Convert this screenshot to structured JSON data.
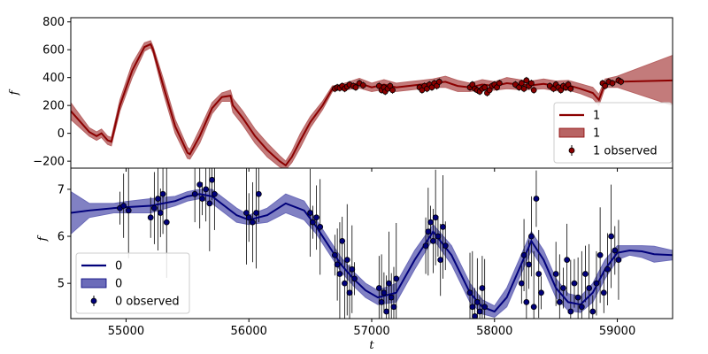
{
  "chart_data": [
    {
      "type": "line",
      "panel": "top",
      "xlabel": "",
      "ylabel": "f",
      "xlim": [
        54550,
        59450
      ],
      "ylim": [
        -250,
        830
      ],
      "yticks": [
        -200,
        0,
        200,
        400,
        600,
        800
      ],
      "colors": {
        "line": "#8b0000",
        "band": "#b86464",
        "point": "#8b0000"
      },
      "legend": {
        "placement": "lower-right",
        "entries": [
          "1",
          "1",
          "1 observed"
        ]
      },
      "series": [
        {
          "name": "1",
          "kind": "mean",
          "x": [
            54550,
            54650,
            54700,
            54760,
            54800,
            54850,
            54880,
            54950,
            55050,
            55150,
            55200,
            55220,
            55300,
            55400,
            55500,
            55520,
            55600,
            55700,
            55780,
            55850,
            55870,
            55950,
            56050,
            56150,
            56250,
            56300,
            56350,
            56420,
            56500,
            56600,
            56680,
            56720,
            56800,
            56900,
            57000,
            57100,
            57200,
            57300,
            57400,
            57500,
            57600,
            57700,
            57800,
            57900,
            58000,
            58100,
            58200,
            58300,
            58400,
            58500,
            58600,
            58700,
            58800,
            58850,
            58900,
            59000,
            59450
          ],
          "values": [
            160,
            60,
            10,
            -20,
            0,
            -50,
            -60,
            200,
            450,
            620,
            640,
            600,
            350,
            50,
            -140,
            -150,
            -20,
            180,
            260,
            270,
            200,
            110,
            -20,
            -120,
            -200,
            -230,
            -170,
            -50,
            80,
            200,
            320,
            330,
            340,
            360,
            330,
            350,
            330,
            340,
            350,
            360,
            370,
            340,
            330,
            350,
            340,
            360,
            350,
            345,
            355,
            340,
            345,
            320,
            290,
            240,
            360,
            370,
            380
          ]
        },
        {
          "name": "1",
          "kind": "band",
          "x": [
            54550,
            54650,
            54700,
            54760,
            54800,
            54850,
            54880,
            54950,
            55050,
            55150,
            55200,
            55220,
            55300,
            55400,
            55500,
            55520,
            55600,
            55700,
            55780,
            55850,
            55870,
            55950,
            56050,
            56150,
            56250,
            56300,
            56350,
            56420,
            56500,
            56600,
            56680,
            56720,
            56800,
            56900,
            57000,
            57100,
            57200,
            57300,
            57400,
            57500,
            57600,
            57700,
            57800,
            57900,
            58000,
            58100,
            58200,
            58300,
            58400,
            58500,
            58600,
            58700,
            58800,
            58850,
            58900,
            59000,
            59450
          ],
          "lower": [
            100,
            20,
            -20,
            -50,
            -30,
            -80,
            -90,
            160,
            400,
            590,
            615,
            575,
            300,
            0,
            -180,
            -185,
            -70,
            140,
            230,
            230,
            150,
            60,
            -70,
            -170,
            -240,
            -260,
            -210,
            -100,
            40,
            170,
            300,
            315,
            315,
            325,
            300,
            315,
            300,
            310,
            320,
            330,
            330,
            300,
            300,
            315,
            310,
            320,
            315,
            315,
            320,
            305,
            310,
            285,
            250,
            200,
            330,
            330,
            200
          ],
          "upper": [
            220,
            100,
            40,
            10,
            30,
            -20,
            -30,
            240,
            500,
            650,
            665,
            625,
            400,
            100,
            -100,
            -115,
            30,
            220,
            290,
            310,
            250,
            160,
            30,
            -70,
            -160,
            -200,
            -130,
            0,
            120,
            230,
            340,
            345,
            365,
            395,
            360,
            385,
            360,
            370,
            380,
            390,
            410,
            380,
            360,
            385,
            370,
            400,
            385,
            375,
            390,
            375,
            380,
            355,
            330,
            280,
            390,
            410,
            560
          ]
        }
      ],
      "observed": {
        "name": "1 observed",
        "x": [
          56700,
          56720,
          56740,
          56760,
          56780,
          56800,
          56820,
          56850,
          56870,
          56900,
          56930,
          57060,
          57080,
          57100,
          57110,
          57130,
          57150,
          57170,
          57390,
          57410,
          57430,
          57450,
          57470,
          57490,
          57510,
          57530,
          57550,
          57800,
          57820,
          57840,
          57860,
          57880,
          57900,
          57920,
          57940,
          57960,
          57980,
          58000,
          58020,
          58040,
          58170,
          58200,
          58220,
          58240,
          58260,
          58280,
          58300,
          58320,
          58450,
          58480,
          58500,
          58520,
          58540,
          58560,
          58580,
          58600,
          58620,
          58880,
          58900,
          58930,
          58960,
          59010,
          59030
        ],
        "values": [
          320,
          330,
          325,
          340,
          320,
          335,
          350,
          340,
          330,
          360,
          345,
          340,
          310,
          330,
          300,
          320,
          340,
          310,
          330,
          310,
          340,
          320,
          350,
          330,
          360,
          340,
          370,
          330,
          350,
          320,
          310,
          300,
          320,
          330,
          290,
          310,
          340,
          350,
          330,
          360,
          350,
          330,
          360,
          320,
          380,
          340,
          360,
          310,
          340,
          320,
          350,
          330,
          310,
          340,
          330,
          350,
          320,
          360,
          340,
          370,
          360,
          380,
          370
        ]
      }
    },
    {
      "type": "line",
      "panel": "bottom",
      "xlabel": "t",
      "ylabel": "f",
      "xlim": [
        54550,
        59450
      ],
      "ylim": [
        4.25,
        7.45
      ],
      "yticks": [
        5,
        6,
        7
      ],
      "xticks": [
        55000,
        56000,
        57000,
        58000,
        59000
      ],
      "colors": {
        "line": "#00007a",
        "band": "#6b6bb9",
        "point": "#00007a"
      },
      "legend": {
        "placement": "lower-left",
        "entries": [
          "0",
          "0",
          "0 observed"
        ]
      },
      "series": [
        {
          "name": "0",
          "kind": "mean",
          "x": [
            54550,
            54700,
            54900,
            55000,
            55200,
            55400,
            55500,
            55600,
            55700,
            55800,
            55900,
            56000,
            56150,
            56300,
            56450,
            56550,
            56650,
            56750,
            56850,
            56950,
            57050,
            57200,
            57350,
            57500,
            57650,
            57800,
            57900,
            58000,
            58100,
            58200,
            58300,
            58400,
            58500,
            58600,
            58700,
            58800,
            58900,
            59000,
            59100,
            59200,
            59300,
            59450
          ],
          "values": [
            6.5,
            6.55,
            6.6,
            6.62,
            6.65,
            6.75,
            6.85,
            6.9,
            6.85,
            6.65,
            6.45,
            6.35,
            6.45,
            6.7,
            6.55,
            6.2,
            5.8,
            5.4,
            5.1,
            4.85,
            4.7,
            4.8,
            5.5,
            6.1,
            5.6,
            4.8,
            4.5,
            4.4,
            4.7,
            5.3,
            5.9,
            5.5,
            4.9,
            4.6,
            4.55,
            4.8,
            5.3,
            5.65,
            5.7,
            5.68,
            5.62,
            5.6
          ]
        },
        {
          "name": "0",
          "kind": "band",
          "x": [
            54550,
            54700,
            54900,
            55000,
            55200,
            55400,
            55500,
            55600,
            55700,
            55800,
            55900,
            56000,
            56150,
            56300,
            56450,
            56550,
            56650,
            56750,
            56850,
            56950,
            57050,
            57200,
            57350,
            57500,
            57650,
            57800,
            57900,
            58000,
            58100,
            58200,
            58300,
            58400,
            58500,
            58600,
            58700,
            58800,
            58900,
            59000,
            59100,
            59200,
            59300,
            59450
          ],
          "lower": [
            6.05,
            6.4,
            6.5,
            6.5,
            6.5,
            6.65,
            6.75,
            6.8,
            6.7,
            6.5,
            6.3,
            6.25,
            6.3,
            6.5,
            6.35,
            6.05,
            5.65,
            5.25,
            4.95,
            4.7,
            4.55,
            4.6,
            5.3,
            5.95,
            5.4,
            4.6,
            4.35,
            4.28,
            4.5,
            5.1,
            5.7,
            5.3,
            4.7,
            4.42,
            4.38,
            4.6,
            5.1,
            5.5,
            5.6,
            5.55,
            5.45,
            5.5
          ],
          "upper": [
            6.95,
            6.7,
            6.7,
            6.74,
            6.8,
            6.85,
            6.95,
            7.0,
            7.0,
            6.8,
            6.6,
            6.45,
            6.6,
            6.9,
            6.75,
            6.35,
            5.95,
            5.55,
            5.25,
            5.0,
            4.85,
            5.0,
            5.7,
            6.25,
            5.8,
            5.0,
            4.65,
            4.52,
            4.9,
            5.5,
            6.1,
            5.7,
            5.1,
            4.78,
            4.72,
            5.0,
            5.5,
            5.8,
            5.8,
            5.8,
            5.79,
            5.7
          ]
        }
      ],
      "observed": {
        "name": "0 observed",
        "x": [
          54950,
          54980,
          55020,
          55200,
          55230,
          55260,
          55280,
          55300,
          55330,
          55560,
          55600,
          55620,
          55650,
          55680,
          55700,
          55720,
          55980,
          56000,
          56030,
          56060,
          56080,
          56500,
          56520,
          56550,
          56580,
          56700,
          56720,
          56740,
          56760,
          56780,
          56800,
          56820,
          56840,
          56860,
          57060,
          57080,
          57100,
          57120,
          57140,
          57160,
          57180,
          57200,
          57440,
          57460,
          57480,
          57500,
          57520,
          57540,
          57560,
          57580,
          57600,
          57800,
          57820,
          57840,
          57860,
          57880,
          57900,
          57920,
          58220,
          58240,
          58260,
          58280,
          58300,
          58320,
          58340,
          58360,
          58380,
          58500,
          58530,
          58560,
          58590,
          58620,
          58650,
          58680,
          58710,
          58740,
          58770,
          58800,
          58830,
          58860,
          58890,
          58920,
          58950,
          58980,
          59010
        ],
        "values": [
          6.6,
          6.65,
          6.55,
          6.4,
          6.6,
          6.8,
          6.5,
          6.9,
          6.3,
          6.9,
          7.1,
          6.8,
          7.0,
          6.7,
          7.2,
          6.9,
          6.5,
          6.4,
          6.3,
          6.5,
          6.9,
          6.5,
          6.3,
          6.4,
          6.2,
          5.6,
          5.4,
          5.2,
          5.9,
          5.0,
          5.5,
          4.8,
          5.3,
          5.1,
          4.9,
          4.6,
          4.8,
          4.4,
          5.0,
          4.7,
          4.5,
          5.1,
          5.8,
          6.1,
          6.3,
          5.9,
          6.4,
          6.0,
          5.5,
          6.2,
          5.8,
          4.8,
          4.5,
          4.3,
          4.6,
          4.4,
          4.9,
          4.5,
          5.0,
          5.6,
          4.6,
          5.4,
          6.0,
          4.5,
          6.8,
          5.2,
          4.8,
          5.2,
          4.6,
          4.9,
          5.5,
          4.4,
          5.0,
          4.7,
          4.5,
          5.2,
          4.9,
          4.4,
          5.0,
          5.6,
          4.8,
          5.3,
          6.0,
          5.7,
          5.5
        ]
      }
    }
  ]
}
